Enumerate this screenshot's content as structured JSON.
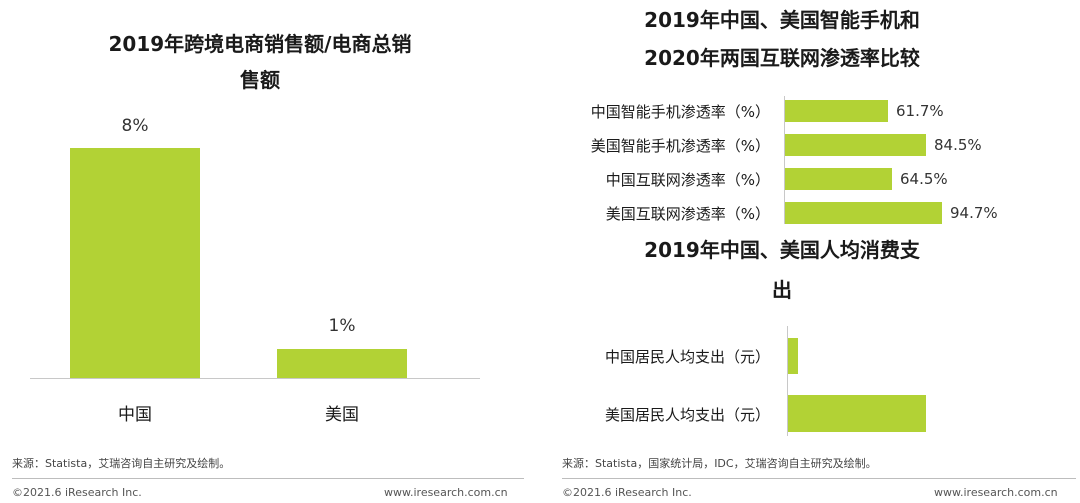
{
  "chart_data": [
    {
      "type": "bar",
      "title_line1": "2019年跨境电商销售额/电商总销",
      "title_line2": "售额",
      "categories": [
        "中国",
        "美国"
      ],
      "values": [
        8,
        1
      ],
      "value_labels": [
        "8%",
        "1%"
      ],
      "unit": "%",
      "ylim": [
        0,
        9
      ],
      "grid": false
    },
    {
      "type": "bar",
      "orientation": "horizontal",
      "title_line1": "2019年中国、美国智能手机和",
      "title_line2": "2020年两国互联网渗透率比较",
      "categories": [
        "中国智能手机渗透率（%）",
        "美国智能手机渗透率（%）",
        "中国互联网渗透率（%）",
        "美国互联网渗透率（%）"
      ],
      "values": [
        61.7,
        84.5,
        64.5,
        94.7
      ],
      "value_labels": [
        "61.7%",
        "84.5%",
        "64.5%",
        "94.7%"
      ],
      "xlim": [
        0,
        100
      ],
      "grid": false
    },
    {
      "type": "bar",
      "orientation": "horizontal",
      "title_line1": "2019年中国、美国人均消费支",
      "title_line2": "出",
      "categories": [
        "中国居民人均支出（元）",
        "美国居民人均支出（元）"
      ],
      "values": [
        4,
        100
      ],
      "xlim": [
        0,
        100
      ],
      "grid": false
    }
  ],
  "sources": {
    "left": "来源：Statista，艾瑞咨询自主研究及绘制。",
    "right": "来源：Statista，国家统计局，IDC，艾瑞咨询自主研究及绘制。"
  },
  "footer": {
    "copyright": "©2021.6 iResearch Inc.",
    "website": "www.iresearch.com.cn"
  },
  "colors": {
    "bar": "#b2d235",
    "axis": "#c8c8c8"
  }
}
